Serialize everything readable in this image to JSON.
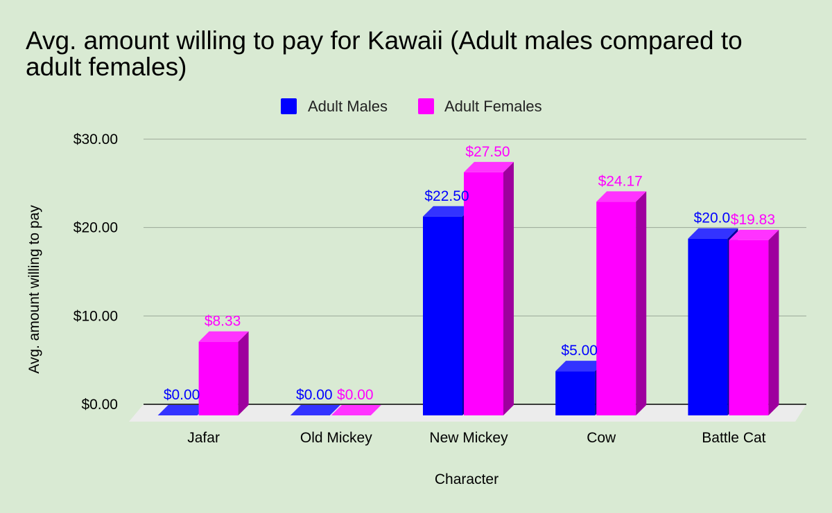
{
  "chart_data": {
    "type": "bar",
    "title": "Avg. amount willing to pay for Kawaii (Adult males compared to adult females)",
    "title_lines": [
      "Avg. amount willing to pay for Kawaii (Adult males compared to",
      "adult females)"
    ],
    "xlabel": "Character",
    "ylabel": "Avg. amount willing to pay",
    "categories": [
      "Jafar",
      "Old Mickey",
      "New Mickey",
      "Cow",
      "Battle Cat"
    ],
    "series": [
      {
        "name": "Adult Males",
        "color": "#0000ff",
        "values": [
          0,
          0,
          22.5,
          5.0,
          20.0
        ],
        "labels": [
          "$0.00",
          "$0.00",
          "$22.50",
          "$5.00",
          "$20.0"
        ]
      },
      {
        "name": "Adult Females",
        "color": "#ff00ff",
        "values": [
          8.33,
          0,
          27.5,
          24.17,
          19.83
        ],
        "labels": [
          "$8.33",
          "$0.00",
          "$27.50",
          "$24.17",
          "$19.83"
        ]
      }
    ],
    "ylim": [
      0,
      30
    ],
    "yticks": [
      0,
      10,
      20,
      30
    ],
    "ytick_labels": [
      "$0.00",
      "$10.00",
      "$20.00",
      "$30.00"
    ],
    "grid": true,
    "legend_position": "top-center",
    "style": "3d-bar"
  }
}
